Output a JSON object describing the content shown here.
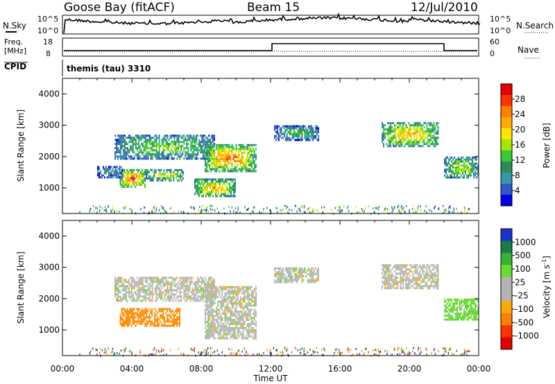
{
  "header": {
    "station": "Goose Bay (fitACF)",
    "beam": "Beam 15",
    "date": "12/Jul/2010",
    "cpid_label": "CPID",
    "cpid_value": "themis (tau) 3310"
  },
  "summary_panels": {
    "nsky": {
      "label": "N.Sky",
      "top_tick": "10^5",
      "bottom_tick": "10^0"
    },
    "nsearch": {
      "label": "N.Search",
      "top_tick": "10^5",
      "bottom_tick": "10^0"
    },
    "freq": {
      "label_line1": "Freq.",
      "label_line2": "[MHz]",
      "top_tick": "18",
      "bottom_tick": "8"
    },
    "nave": {
      "label": "Nave",
      "top_tick": "60",
      "bottom_tick": "0"
    }
  },
  "power_colorbar": {
    "label": "Power [dB]",
    "ticks": [
      "28",
      "24",
      "20",
      "16",
      "12",
      "8",
      "4"
    ],
    "colors": [
      "#e60000",
      "#ff3300",
      "#ff7f00",
      "#ffaa00",
      "#ffe600",
      "#a6e600",
      "#33cc33",
      "#2e8b57",
      "#3399aa",
      "#3355cc",
      "#0000e6"
    ]
  },
  "velocity_colorbar": {
    "label": "Velocity [m s",
    "label_sup": "-1",
    "label_end": "]",
    "ticks": [
      "1000",
      "500",
      "100",
      "25",
      "-25",
      "-100",
      "-500",
      "-1000"
    ],
    "colors": [
      "#1a33cc",
      "#1a7a4a",
      "#33b233",
      "#66dd33",
      "#b4b4b4",
      "#b4b4b4",
      "#ffaa00",
      "#ff7f00",
      "#ff3300",
      "#e60000"
    ]
  },
  "chart_data": [
    {
      "type": "heatmap",
      "name": "Power",
      "ylabel": "Slant Range [km]",
      "xlabel": "Time UT",
      "xlim": [
        "00:00",
        "24:00"
      ],
      "ylim": [
        180,
        4500
      ],
      "x_ticks": [
        "00:00",
        "04:00",
        "08:00",
        "12:00",
        "16:00",
        "20:00",
        "00:00"
      ],
      "y_ticks": [
        1000,
        2000,
        3000,
        4000
      ],
      "scale_label": "Power [dB]",
      "scale_ticks": [
        4,
        8,
        12,
        16,
        20,
        24,
        28
      ],
      "regions": [
        {
          "t": [
            3.3,
            4.8
          ],
          "range": [
            1000,
            1600
          ],
          "level": 20
        },
        {
          "t": [
            4.8,
            7.0
          ],
          "range": [
            1200,
            1600
          ],
          "level": 14
        },
        {
          "t": [
            3.0,
            8.8
          ],
          "range": [
            1900,
            2700
          ],
          "level": 10
        },
        {
          "t": [
            8.2,
            11.2
          ],
          "range": [
            1500,
            2400
          ],
          "level": 18
        },
        {
          "t": [
            7.6,
            10.0
          ],
          "range": [
            700,
            1300
          ],
          "level": 16
        },
        {
          "t": [
            2.0,
            3.5
          ],
          "range": [
            1300,
            1700
          ],
          "level": 6
        },
        {
          "t": [
            12.2,
            14.8
          ],
          "range": [
            2500,
            3000
          ],
          "level": 8
        },
        {
          "t": [
            18.4,
            21.7
          ],
          "range": [
            2300,
            3100
          ],
          "level": 16
        },
        {
          "t": [
            22.0,
            24.0
          ],
          "range": [
            1300,
            2000
          ],
          "level": 12
        }
      ]
    },
    {
      "type": "heatmap",
      "name": "Velocity",
      "ylabel": "Slant Range [km]",
      "xlabel": "Time UT",
      "xlim": [
        "00:00",
        "24:00"
      ],
      "ylim": [
        180,
        4500
      ],
      "x_ticks": [
        "00:00",
        "04:00",
        "08:00",
        "12:00",
        "16:00",
        "20:00",
        "00:00"
      ],
      "y_ticks": [
        1000,
        2000,
        3000,
        4000
      ],
      "scale_label": "Velocity [m s-1]",
      "scale_ticks": [
        -1000,
        -500,
        -100,
        -25,
        25,
        100,
        500,
        1000
      ],
      "regions": [
        {
          "t": [
            3.3,
            6.8
          ],
          "range": [
            1100,
            1700
          ],
          "level": -200
        },
        {
          "t": [
            3.0,
            8.8
          ],
          "range": [
            1900,
            2700
          ],
          "level": 0
        },
        {
          "t": [
            8.2,
            11.2
          ],
          "range": [
            700,
            2400
          ],
          "level": 0
        },
        {
          "t": [
            12.2,
            14.8
          ],
          "range": [
            2500,
            3000
          ],
          "level": 0
        },
        {
          "t": [
            18.4,
            21.7
          ],
          "range": [
            2300,
            3100
          ],
          "level": 0
        },
        {
          "t": [
            22.0,
            24.0
          ],
          "range": [
            1300,
            2000
          ],
          "level": 50
        }
      ]
    }
  ]
}
